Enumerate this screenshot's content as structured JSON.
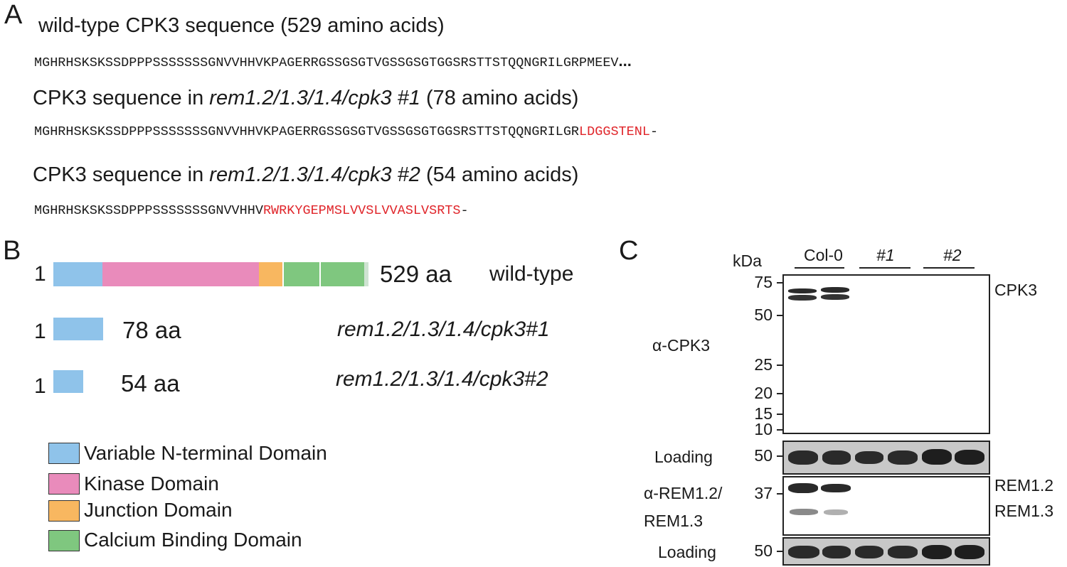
{
  "panel_a": {
    "letter": "A",
    "wt_heading": "wild-type CPK3 sequence (529 amino acids)",
    "wt_seq": "MGHRHSKSKSSDPPPSSSSSSSGNVVHHVKPAGERRGSSGSGTVGSSGSGTGGSRSTTSTQQNGRILGRPMEEV",
    "wt_ellipsis": "...",
    "m1_heading_pre": "CPK3 sequence in ",
    "m1_heading_geno": "rem1.2/1.3/1.4/cpk3 #1",
    "m1_heading_post": " (78 amino acids)",
    "m1_seq_black": "MGHRHSKSKSSDPPPSSSSSSSGNVVHHVKPAGERRGSSGSGTVGSSGSGTGGSRSTTSTQQNGRILGR",
    "m1_seq_red": "LDGGSTENL",
    "m1_seq_end": "-",
    "m2_heading_pre": "CPK3 sequence in ",
    "m2_heading_geno": "rem1.2/1.3/1.4/cpk3 #2",
    "m2_heading_post": " (54 amino acids)",
    "m2_seq_black": "MGHRHSKSKSSDPPPSSSSSSSGNVVHHV",
    "m2_seq_red": "RWRKYGEPMSLVVSLVVASLVSRTS",
    "m2_seq_end": "-"
  },
  "panel_b": {
    "letter": "B",
    "rows": [
      {
        "start": "1",
        "size": "529 aa",
        "label": "wild-type",
        "italic": false
      },
      {
        "start": "1",
        "size": "78 aa",
        "label": "rem1.2/1.3/1.4/cpk3#1",
        "italic": true
      },
      {
        "start": "1",
        "size": "54 aa",
        "label": "rem1.2/1.3/1.4/cpk3#2",
        "italic": true
      }
    ],
    "legend": [
      {
        "label": "Variable N-terminal Domain",
        "color": "#8fc3ea"
      },
      {
        "label": "Kinase Domain",
        "color": "#e98bbb"
      },
      {
        "label": "Junction Domain",
        "color": "#f8b760"
      },
      {
        "label": "Calcium Binding Domain",
        "color": "#7fc77f"
      }
    ]
  },
  "panel_c": {
    "letter": "C",
    "kda": "kDa",
    "lanes": [
      "Col-0",
      "#1",
      "#2"
    ],
    "mw_top": [
      "75",
      "50",
      "25",
      "20",
      "15",
      "10"
    ],
    "mw_loading": "50",
    "mw_rem": "37",
    "mw_loading2": "50",
    "label_cpk3_ab": "α-CPK3",
    "label_loading": "Loading",
    "label_rem_ab_line1": "α-REM1.2/",
    "label_rem_ab_line2": "REM1.3",
    "label_loading2": "Loading",
    "right_cpk3": "CPK3",
    "right_rem12": "REM1.2",
    "right_rem13": "REM1.3"
  }
}
